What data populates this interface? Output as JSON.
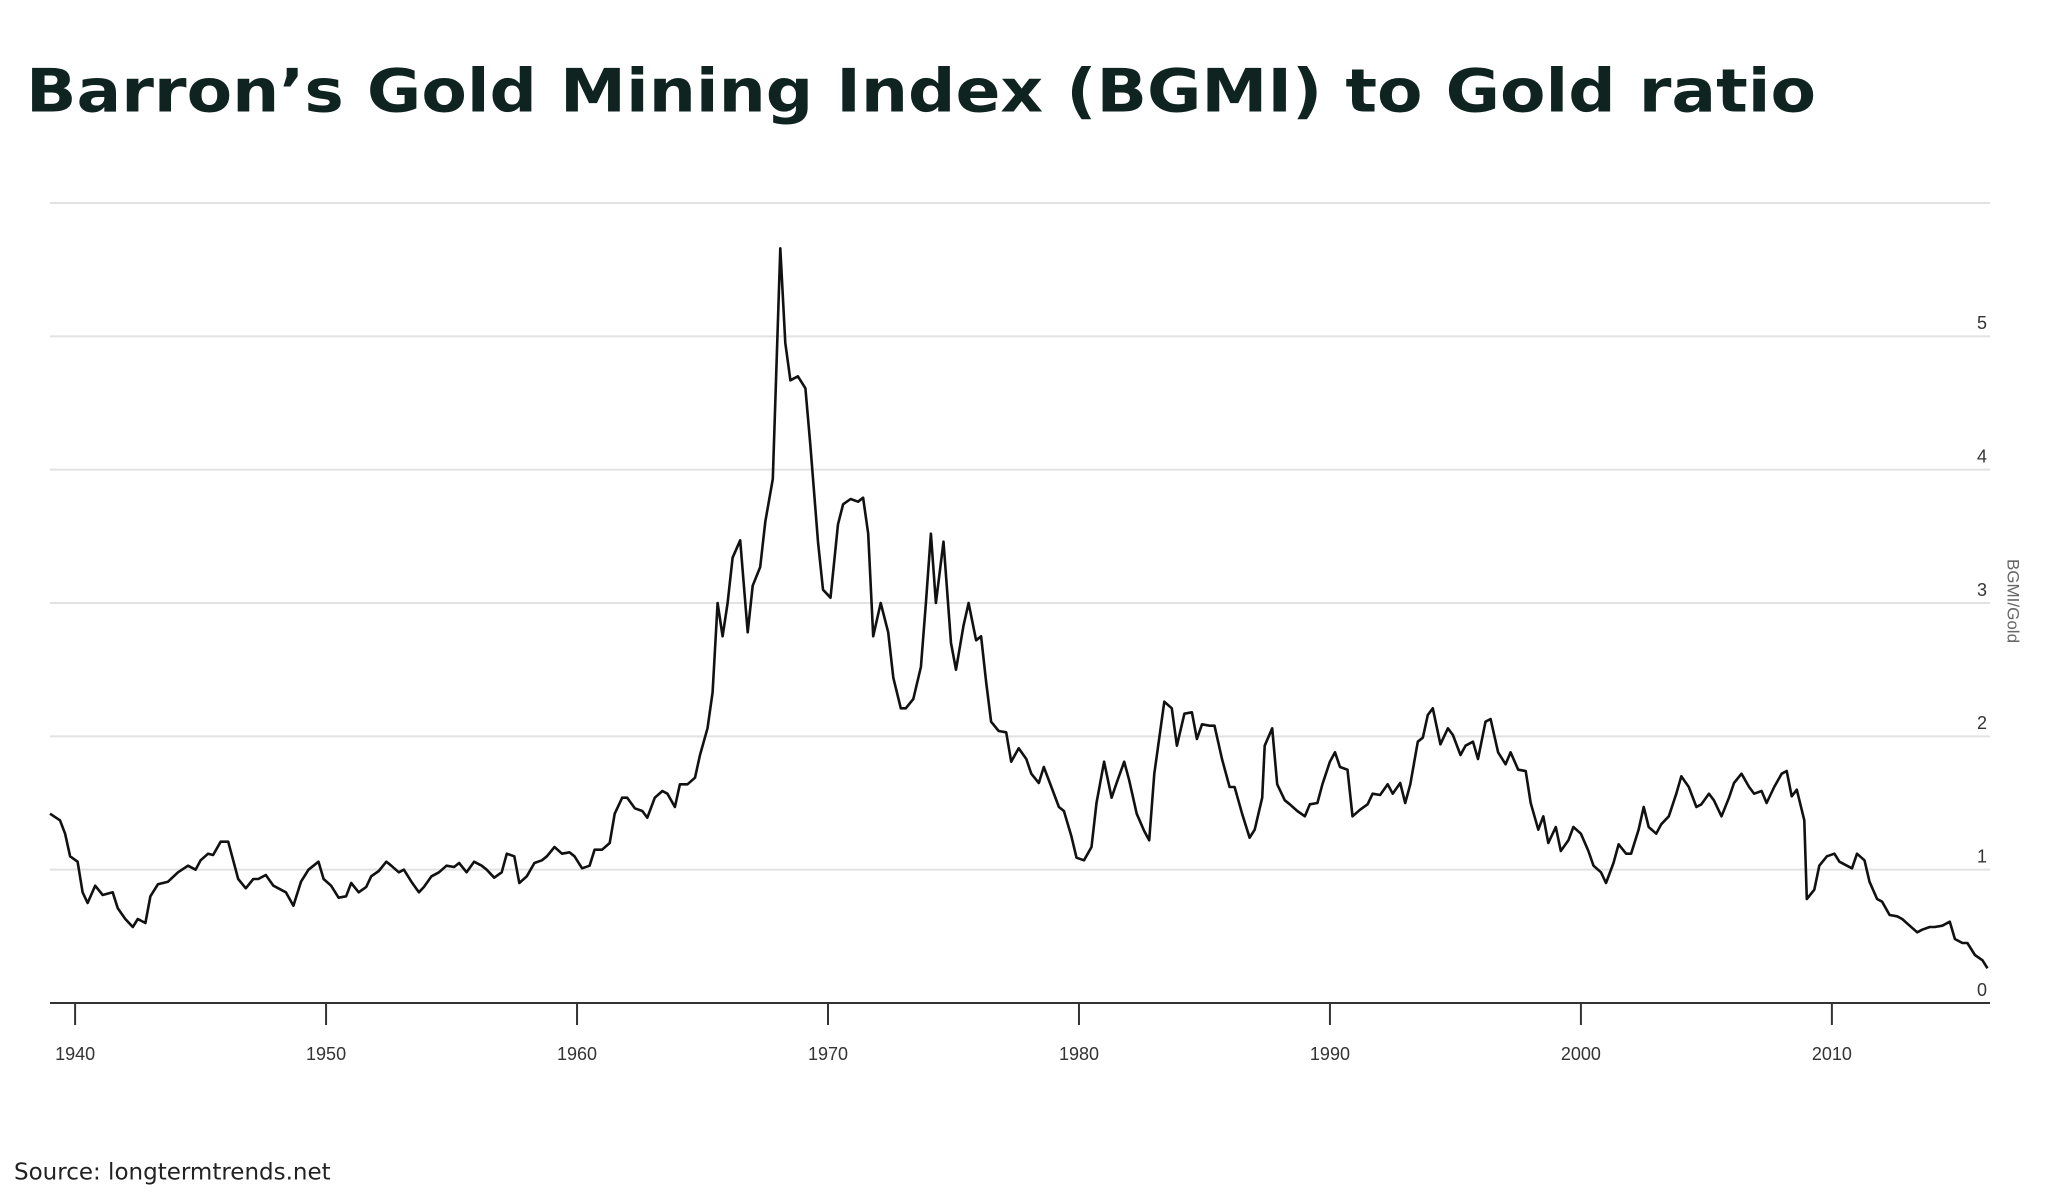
{
  "chart_data": {
    "type": "line",
    "title": "Barron’s Gold Mining Index (BGMI) to Gold ratio",
    "y_label": "BGMI/Gold",
    "source": "Source: longtermtrends.net",
    "color": "#111111",
    "xlim": [
      1939,
      2016.3
    ],
    "xticks": [
      1940,
      1950,
      1960,
      1970,
      1980,
      1990,
      2000,
      2010
    ],
    "ylim": [
      0,
      6
    ],
    "yticks": [
      0,
      1,
      2,
      3,
      4,
      5
    ],
    "grid": true,
    "x": [
      1939.0,
      1939.4,
      1939.6,
      1939.8,
      1940.1,
      1940.3,
      1940.5,
      1940.8,
      1941.1,
      1941.5,
      1941.7,
      1942.0,
      1942.3,
      1942.5,
      1942.8,
      1943.0,
      1943.3,
      1943.7,
      1944.1,
      1944.5,
      1944.8,
      1945.0,
      1945.3,
      1945.5,
      1945.8,
      1946.1,
      1946.3,
      1946.5,
      1946.8,
      1947.1,
      1947.3,
      1947.6,
      1947.9,
      1948.2,
      1948.4,
      1948.7,
      1949.0,
      1949.3,
      1949.7,
      1949.9,
      1950.2,
      1950.5,
      1950.8,
      1951.0,
      1951.3,
      1951.6,
      1951.8,
      1952.1,
      1952.4,
      1952.6,
      1952.9,
      1953.1,
      1953.4,
      1953.7,
      1953.9,
      1954.2,
      1954.5,
      1954.8,
      1955.1,
      1955.3,
      1955.6,
      1955.9,
      1956.2,
      1956.4,
      1956.7,
      1957.0,
      1957.2,
      1957.5,
      1957.7,
      1958.0,
      1958.3,
      1958.6,
      1958.8,
      1959.1,
      1959.4,
      1959.7,
      1959.9,
      1960.2,
      1960.5,
      1960.7,
      1961.0,
      1961.3,
      1961.5,
      1961.8,
      1962.0,
      1962.3,
      1962.6,
      1962.8,
      1963.1,
      1963.4,
      1963.6,
      1963.9,
      1964.1,
      1964.4,
      1964.7,
      1964.9,
      1965.2,
      1965.4,
      1965.6,
      1965.8,
      1966.0,
      1966.2,
      1966.5,
      1966.8,
      1967.0,
      1967.3,
      1967.5,
      1967.8,
      1968.1,
      1968.3,
      1968.5,
      1968.8,
      1969.1,
      1969.3,
      1969.6,
      1969.8,
      1970.1,
      1970.4,
      1970.6,
      1970.9,
      1971.2,
      1971.4,
      1971.6,
      1971.8,
      1972.1,
      1972.4,
      1972.6,
      1972.9,
      1973.1,
      1973.4,
      1973.7,
      1973.9,
      1974.1,
      1974.3,
      1974.6,
      1974.9,
      1975.1,
      1975.4,
      1975.6,
      1975.9,
      1976.1,
      1976.3,
      1976.5,
      1976.8,
      1977.1,
      1977.3,
      1977.6,
      1977.9,
      1978.1,
      1978.4,
      1978.6,
      1978.9,
      1979.2,
      1979.4,
      1979.7,
      1979.9,
      1980.2,
      1980.5,
      1980.7,
      1981.0,
      1981.3,
      1981.5,
      1981.8,
      1982.0,
      1982.3,
      1982.6,
      1982.8,
      1983.0,
      1983.2,
      1983.4,
      1983.7,
      1983.9,
      1984.2,
      1984.5,
      1984.7,
      1984.9,
      1985.2,
      1985.4,
      1985.7,
      1986.0,
      1986.2,
      1986.5,
      1986.8,
      1987.0,
      1987.3,
      1987.4,
      1987.7,
      1987.9,
      1988.2,
      1988.4,
      1988.7,
      1989.0,
      1989.2,
      1989.5,
      1989.7,
      1990.0,
      1990.2,
      1990.4,
      1990.7,
      1990.9,
      1991.2,
      1991.5,
      1991.7,
      1992.0,
      1992.3,
      1992.5,
      1992.8,
      1993.0,
      1993.2,
      1993.5,
      1993.7,
      1993.9,
      1994.1,
      1994.4,
      1994.7,
      1994.9,
      1995.2,
      1995.4,
      1995.7,
      1995.9,
      1996.2,
      1996.4,
      1996.7,
      1997.0,
      1997.2,
      1997.5,
      1997.8,
      1998.0,
      1998.3,
      1998.5,
      1998.7,
      1999.0,
      1999.2,
      1999.5,
      1999.7,
      2000.0,
      2000.3,
      2000.5,
      2000.8,
      2001.0,
      2001.3,
      2001.5,
      2001.8,
      2002.0,
      2002.3,
      2002.5,
      2002.7,
      2003.0,
      2003.2,
      2003.5,
      2003.8,
      2004.0,
      2004.3,
      2004.6,
      2004.8,
      2005.1,
      2005.3,
      2005.6,
      2005.9,
      2006.1,
      2006.4,
      2006.7,
      2006.9,
      2007.2,
      2007.4,
      2007.7,
      2008.0,
      2008.2,
      2008.4,
      2008.6,
      2008.9,
      2009.0,
      2009.3,
      2009.5,
      2009.8,
      2010.1,
      2010.3,
      2010.6,
      2010.8,
      2011.0,
      2011.3,
      2011.5,
      2011.8,
      2012.0,
      2012.3,
      2012.6,
      2012.8,
      2013.1,
      2013.4,
      2013.6,
      2013.9,
      2014.1,
      2014.4,
      2014.7,
      2014.9,
      2015.2,
      2015.4,
      2015.7,
      2016.0,
      2016.2
    ],
    "values": [
      1.42,
      1.37,
      1.27,
      1.1,
      1.06,
      0.83,
      0.75,
      0.88,
      0.81,
      0.83,
      0.71,
      0.63,
      0.57,
      0.63,
      0.6,
      0.8,
      0.89,
      0.91,
      0.98,
      1.03,
      1.0,
      1.07,
      1.12,
      1.11,
      1.21,
      1.21,
      1.07,
      0.93,
      0.86,
      0.93,
      0.93,
      0.96,
      0.88,
      0.85,
      0.83,
      0.73,
      0.91,
      1.0,
      1.06,
      0.93,
      0.88,
      0.79,
      0.8,
      0.9,
      0.83,
      0.87,
      0.95,
      0.99,
      1.06,
      1.03,
      0.98,
      1.0,
      0.91,
      0.83,
      0.87,
      0.95,
      0.98,
      1.03,
      1.02,
      1.05,
      0.98,
      1.06,
      1.03,
      1.0,
      0.94,
      0.98,
      1.12,
      1.1,
      0.9,
      0.95,
      1.05,
      1.07,
      1.1,
      1.17,
      1.12,
      1.13,
      1.1,
      1.01,
      1.03,
      1.15,
      1.15,
      1.2,
      1.42,
      1.54,
      1.54,
      1.46,
      1.44,
      1.39,
      1.54,
      1.59,
      1.57,
      1.47,
      1.64,
      1.64,
      1.69,
      1.86,
      2.06,
      2.33,
      3.0,
      2.75,
      3.0,
      3.34,
      3.47,
      2.78,
      3.13,
      3.27,
      3.61,
      3.93,
      5.66,
      4.95,
      4.67,
      4.7,
      4.61,
      4.18,
      3.46,
      3.1,
      3.04,
      3.59,
      3.74,
      3.78,
      3.76,
      3.79,
      3.52,
      2.75,
      3.0,
      2.78,
      2.44,
      2.21,
      2.21,
      2.28,
      2.52,
      3.0,
      3.52,
      3.0,
      3.46,
      2.7,
      2.5,
      2.83,
      3.0,
      2.72,
      2.75,
      2.41,
      2.11,
      2.04,
      2.03,
      1.81,
      1.91,
      1.83,
      1.72,
      1.65,
      1.77,
      1.62,
      1.47,
      1.44,
      1.25,
      1.09,
      1.07,
      1.17,
      1.5,
      1.81,
      1.54,
      1.65,
      1.81,
      1.67,
      1.42,
      1.29,
      1.22,
      1.72,
      1.99,
      2.26,
      2.21,
      1.93,
      2.17,
      2.18,
      1.98,
      2.09,
      2.08,
      2.08,
      1.83,
      1.62,
      1.62,
      1.42,
      1.24,
      1.3,
      1.54,
      1.93,
      2.06,
      1.64,
      1.52,
      1.49,
      1.44,
      1.4,
      1.49,
      1.5,
      1.64,
      1.81,
      1.88,
      1.77,
      1.75,
      1.4,
      1.45,
      1.49,
      1.57,
      1.56,
      1.64,
      1.57,
      1.65,
      1.5,
      1.64,
      1.96,
      1.99,
      2.16,
      2.21,
      1.94,
      2.06,
      2.01,
      1.86,
      1.93,
      1.96,
      1.83,
      2.11,
      2.13,
      1.88,
      1.79,
      1.88,
      1.75,
      1.74,
      1.5,
      1.3,
      1.4,
      1.2,
      1.32,
      1.14,
      1.22,
      1.32,
      1.27,
      1.14,
      1.03,
      0.98,
      0.9,
      1.05,
      1.19,
      1.12,
      1.12,
      1.3,
      1.47,
      1.32,
      1.27,
      1.34,
      1.4,
      1.57,
      1.7,
      1.62,
      1.47,
      1.49,
      1.57,
      1.52,
      1.4,
      1.54,
      1.65,
      1.72,
      1.62,
      1.57,
      1.59,
      1.5,
      1.62,
      1.72,
      1.74,
      1.55,
      1.6,
      1.37,
      0.78,
      0.85,
      1.03,
      1.1,
      1.12,
      1.06,
      1.03,
      1.01,
      1.12,
      1.07,
      0.91,
      0.78,
      0.76,
      0.66,
      0.65,
      0.63,
      0.58,
      0.53,
      0.55,
      0.57,
      0.57,
      0.58,
      0.61,
      0.48,
      0.45,
      0.45,
      0.36,
      0.32,
      0.26
    ]
  }
}
